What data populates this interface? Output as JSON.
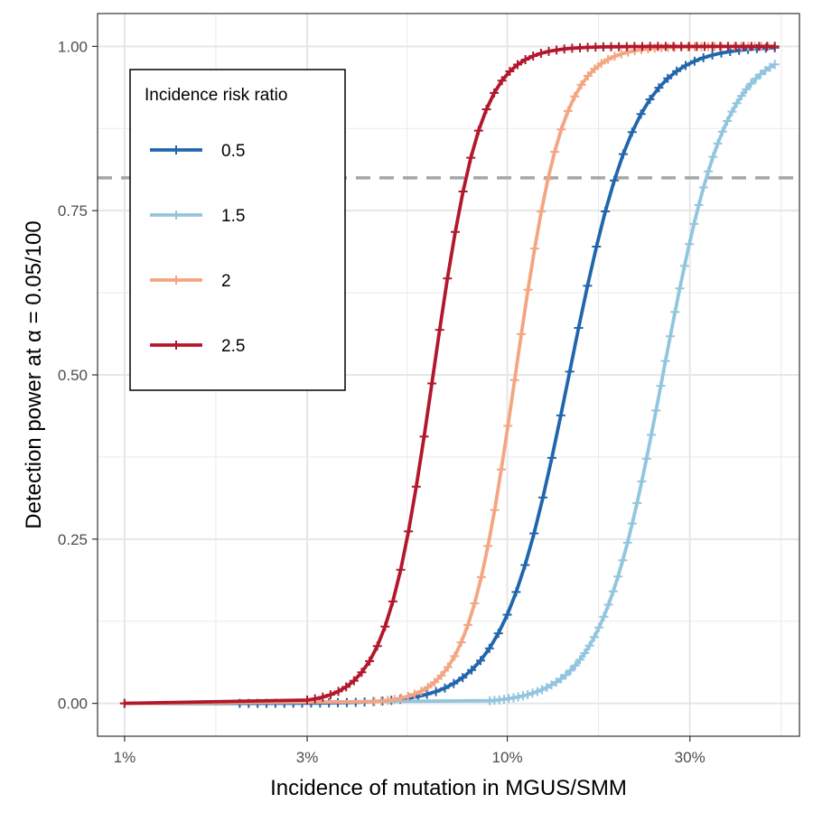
{
  "chart_data": {
    "type": "line",
    "title": "",
    "xlabel": "Incidence of mutation in MGUS/SMM",
    "ylabel": "Detection power at α = 0.05/100",
    "x_scale": "log",
    "xlim": [
      0.0085,
      0.58
    ],
    "ylim": [
      -0.05,
      1.05
    ],
    "x_ticks": [
      0.01,
      0.03,
      0.1,
      0.3
    ],
    "x_tick_labels": [
      "1%",
      "3%",
      "10%",
      "30%"
    ],
    "y_ticks": [
      0,
      0.25,
      0.5,
      0.75,
      1.0
    ],
    "y_tick_labels": [
      "0.00",
      "0.25",
      "0.50",
      "0.75",
      "1.00"
    ],
    "reference_line": {
      "y": 0.8,
      "color": "#a6a6a6",
      "style": "dashed"
    },
    "grid": true,
    "legend": {
      "title": "Incidence risk ratio",
      "position": "top-left"
    },
    "series": [
      {
        "name": "0.5",
        "color": "#2166ac",
        "midpoint": 0.145,
        "slope": 5.0,
        "start": 0.01,
        "sprinkle_from": 0.02
      },
      {
        "name": "1.5",
        "color": "#92c5de",
        "midpoint": 0.255,
        "slope": 5.3,
        "start": 0.01,
        "sprinkle_from": 0.09
      },
      {
        "name": "2",
        "color": "#f4a582",
        "midpoint": 0.105,
        "slope": 7.0,
        "start": 0.01,
        "sprinkle_from": 0.045
      },
      {
        "name": "2.5",
        "color": "#b2182b",
        "midpoint": 0.064,
        "slope": 7.0,
        "start": 0.01,
        "sprinkle_from": 0.03
      }
    ]
  }
}
